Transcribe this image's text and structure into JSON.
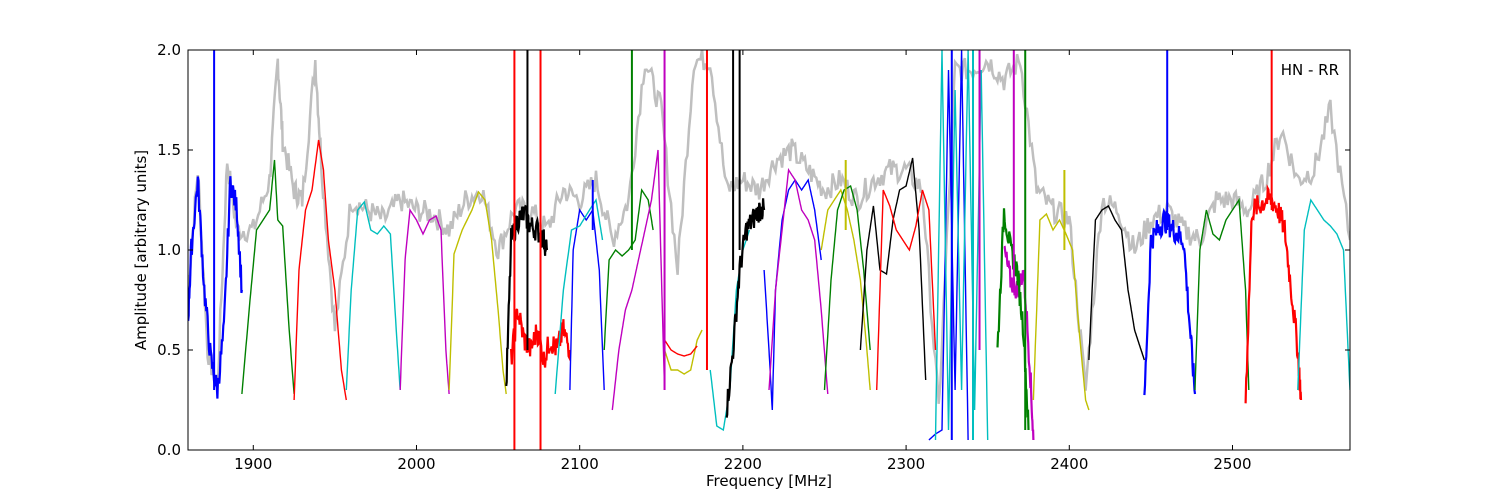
{
  "chart_data": {
    "type": "line",
    "title": "",
    "xlabel": "Frequency [MHz]",
    "ylabel": "Amplitude [arbitrary units]",
    "xlim": [
      1860,
      2572
    ],
    "ylim": [
      0.0,
      2.0
    ],
    "xticks": [
      1900,
      2000,
      2100,
      2200,
      2300,
      2400,
      2500
    ],
    "xtick_labels": [
      "1900",
      "2000",
      "2100",
      "2200",
      "2300",
      "2400",
      "2500"
    ],
    "yticks": [
      0.0,
      0.5,
      1.0,
      1.5,
      2.0
    ],
    "ytick_labels": [
      "0.0",
      "0.5",
      "1.0",
      "1.5",
      "2.0"
    ],
    "annotation": "HN - RR",
    "grid": false,
    "background_series_color": "#bfbfbf",
    "series": [
      {
        "color": "#0000ff",
        "x": [
          1860,
          1862,
          1866,
          1870,
          1874,
          1878,
          1882,
          1886,
          1890,
          1893
        ],
        "y": [
          0.65,
          1.0,
          1.35,
          0.8,
          0.45,
          0.3,
          0.6,
          1.35,
          1.2,
          0.8
        ],
        "noisy": true
      },
      {
        "color": "#008000",
        "x": [
          1893,
          1898,
          1902,
          1906,
          1910,
          1913,
          1915,
          1918,
          1922,
          1925
        ],
        "y": [
          0.28,
          0.75,
          1.1,
          1.15,
          1.2,
          1.45,
          1.15,
          1.12,
          0.6,
          0.28
        ]
      },
      {
        "color": "#ff0000",
        "x": [
          1925,
          1928,
          1932,
          1936,
          1940,
          1943,
          1946,
          1950,
          1954,
          1957
        ],
        "y": [
          0.25,
          0.9,
          1.2,
          1.3,
          1.55,
          1.4,
          1.05,
          0.8,
          0.4,
          0.25
        ]
      },
      {
        "color": "#00bfbf",
        "x": [
          1957,
          1960,
          1964,
          1968,
          1972,
          1976,
          1980,
          1984,
          1988,
          1990
        ],
        "y": [
          0.3,
          0.8,
          1.2,
          1.24,
          1.1,
          1.08,
          1.12,
          1.08,
          0.55,
          0.3
        ]
      },
      {
        "color": "#bf00bf",
        "x": [
          1990,
          1993,
          1996,
          2000,
          2004,
          2008,
          2012,
          2015,
          2018,
          2020
        ],
        "y": [
          0.3,
          0.95,
          1.2,
          1.15,
          1.08,
          1.15,
          1.17,
          1.1,
          0.5,
          0.28
        ]
      },
      {
        "color": "#bfbf00",
        "x": [
          2020,
          2023,
          2028,
          2034,
          2038,
          2042,
          2046,
          2050,
          2053,
          2055
        ],
        "y": [
          0.3,
          0.98,
          1.1,
          1.2,
          1.29,
          1.25,
          1.05,
          0.7,
          0.4,
          0.28
        ]
      },
      {
        "color": "#000000",
        "x": [
          2055,
          2058,
          2062,
          2066,
          2070,
          2074,
          2078,
          2080
        ],
        "y": [
          0.3,
          1.05,
          1.15,
          1.18,
          1.12,
          1.1,
          1.05,
          1.0
        ],
        "noisy": true
      },
      {
        "color": "#ff0000",
        "x": [
          2058,
          2062,
          2066,
          2070,
          2074,
          2078,
          2082,
          2086,
          2090,
          2094
        ],
        "y": [
          0.45,
          0.7,
          0.55,
          0.5,
          0.6,
          0.45,
          0.55,
          0.5,
          0.6,
          0.5
        ],
        "noisy": true
      },
      {
        "color": "#0000ff",
        "x": [
          2094,
          2096,
          2100,
          2104,
          2108,
          2112,
          2115
        ],
        "y": [
          0.3,
          1.0,
          1.2,
          1.15,
          1.2,
          0.9,
          0.3
        ]
      },
      {
        "color": "#00bfbf",
        "x": [
          2085,
          2090,
          2095,
          2100,
          2106,
          2110,
          2114
        ],
        "y": [
          0.28,
          0.8,
          1.1,
          1.12,
          1.2,
          1.25,
          1.05
        ]
      },
      {
        "color": "#008000",
        "x": [
          2115,
          2118,
          2122,
          2126,
          2130,
          2134,
          2138,
          2142,
          2145
        ],
        "y": [
          0.5,
          0.95,
          1.0,
          0.97,
          1.0,
          1.05,
          1.3,
          1.25,
          1.1
        ]
      },
      {
        "color": "#bf00bf",
        "x": [
          2120,
          2124,
          2128,
          2132,
          2136,
          2140,
          2144,
          2148,
          2152
        ],
        "y": [
          0.2,
          0.5,
          0.7,
          0.8,
          0.95,
          1.1,
          1.25,
          1.5,
          0.3
        ]
      },
      {
        "color": "#bfbf00",
        "x": [
          2152,
          2156,
          2160,
          2164,
          2168,
          2172,
          2175
        ],
        "y": [
          0.5,
          0.4,
          0.4,
          0.38,
          0.4,
          0.55,
          0.6
        ]
      },
      {
        "color": "#ff0000",
        "x": [
          2152,
          2156,
          2160,
          2164,
          2168,
          2172
        ],
        "y": [
          0.55,
          0.5,
          0.48,
          0.47,
          0.48,
          0.52
        ]
      },
      {
        "color": "#00bfbf",
        "x": [
          2180,
          2184,
          2188,
          2192,
          2196,
          2200,
          2204
        ],
        "y": [
          0.4,
          0.12,
          0.1,
          0.3,
          0.8,
          1.0,
          1.1
        ]
      },
      {
        "color": "#000000",
        "x": [
          2190,
          2194,
          2198,
          2202,
          2206,
          2210,
          2213
        ],
        "y": [
          0.2,
          0.5,
          0.9,
          1.1,
          1.15,
          1.2,
          1.2
        ],
        "noisy": true
      },
      {
        "color": "#0000ff",
        "x": [
          2213,
          2216,
          2218,
          2220,
          2224,
          2228,
          2232,
          2236,
          2240,
          2244,
          2248
        ],
        "y": [
          0.9,
          0.5,
          0.2,
          0.8,
          1.15,
          1.3,
          1.35,
          1.3,
          1.35,
          1.2,
          0.95
        ]
      },
      {
        "color": "#bf00bf",
        "x": [
          2216,
          2220,
          2224,
          2228,
          2232,
          2236,
          2240,
          2244,
          2248,
          2252
        ],
        "y": [
          0.3,
          0.8,
          1.1,
          1.4,
          1.35,
          1.2,
          1.15,
          1.05,
          0.7,
          0.28
        ]
      },
      {
        "color": "#bfbf00",
        "x": [
          2248,
          2252,
          2256,
          2260,
          2264,
          2268,
          2272,
          2276,
          2278
        ],
        "y": [
          1.0,
          1.2,
          1.25,
          1.3,
          1.2,
          1.05,
          0.85,
          0.5,
          0.3
        ]
      },
      {
        "color": "#008000",
        "x": [
          2250,
          2254,
          2258,
          2262,
          2266,
          2270,
          2274,
          2278
        ],
        "y": [
          0.3,
          0.85,
          1.2,
          1.3,
          1.32,
          1.2,
          0.9,
          0.5
        ]
      },
      {
        "color": "#000000",
        "x": [
          2272,
          2276,
          2280,
          2284,
          2288,
          2292,
          2296,
          2300,
          2304,
          2308,
          2312
        ],
        "y": [
          0.5,
          1.0,
          1.22,
          0.9,
          0.88,
          1.15,
          1.3,
          1.32,
          1.46,
          1.1,
          0.35
        ]
      },
      {
        "color": "#ff0000",
        "x": [
          2282,
          2286,
          2290,
          2294,
          2298,
          2302,
          2306,
          2310,
          2314,
          2318
        ],
        "y": [
          0.3,
          1.3,
          1.22,
          1.1,
          1.05,
          1.0,
          1.12,
          1.3,
          1.2,
          0.5
        ]
      },
      {
        "color": "#0000ff",
        "x": [
          2314,
          2318,
          2322,
          2326,
          2330,
          2334,
          2338
        ],
        "y": [
          0.05,
          0.08,
          0.1,
          1.9,
          0.3,
          2.0,
          0.05
        ]
      },
      {
        "color": "#00bfbf",
        "x": [
          2318,
          2322,
          2326,
          2330,
          2334,
          2338,
          2342,
          2346,
          2350
        ],
        "y": [
          0.05,
          2.0,
          0.1,
          1.8,
          0.3,
          2.0,
          0.2,
          1.9,
          0.05
        ]
      },
      {
        "color": "#bf00bf",
        "x": [
          2360,
          2364,
          2368,
          2372,
          2376,
          2378
        ],
        "y": [
          1.0,
          0.85,
          0.8,
          0.9,
          0.4,
          0.05
        ],
        "noisy": true
      },
      {
        "color": "#008000",
        "x": [
          2356,
          2360,
          2364,
          2368,
          2372,
          2375
        ],
        "y": [
          0.5,
          1.2,
          1.0,
          0.9,
          0.6,
          0.1
        ],
        "noisy": true
      },
      {
        "color": "#bfbf00",
        "x": [
          2378,
          2382,
          2386,
          2390,
          2394,
          2398,
          2402,
          2406,
          2410,
          2412
        ],
        "y": [
          0.25,
          1.15,
          1.18,
          1.1,
          1.15,
          1.08,
          1.0,
          0.6,
          0.25,
          0.2
        ]
      },
      {
        "color": "#000000",
        "x": [
          2412,
          2416,
          2420,
          2424,
          2428,
          2432,
          2436,
          2440,
          2444,
          2446
        ],
        "y": [
          0.45,
          1.15,
          1.2,
          1.22,
          1.15,
          1.1,
          0.8,
          0.6,
          0.5,
          0.45
        ]
      },
      {
        "color": "#0000ff",
        "x": [
          2446,
          2450,
          2454,
          2458,
          2462,
          2466,
          2470,
          2474,
          2477
        ],
        "y": [
          0.25,
          1.05,
          1.1,
          1.15,
          1.12,
          1.08,
          1.05,
          0.6,
          0.28
        ],
        "noisy": true
      },
      {
        "color": "#008000",
        "x": [
          2477,
          2480,
          2484,
          2488,
          2492,
          2496,
          2500,
          2504,
          2508,
          2510
        ],
        "y": [
          0.3,
          1.0,
          1.2,
          1.08,
          1.05,
          1.15,
          1.2,
          1.25,
          0.8,
          0.3
        ]
      },
      {
        "color": "#ff0000",
        "x": [
          2508,
          2512,
          2516,
          2520,
          2524,
          2528,
          2532,
          2536,
          2540,
          2542
        ],
        "y": [
          0.25,
          1.2,
          1.22,
          1.25,
          1.25,
          1.2,
          1.1,
          0.8,
          0.5,
          0.25
        ],
        "noisy": true
      },
      {
        "color": "#00bfbf",
        "x": [
          2540,
          2544,
          2548,
          2552,
          2556,
          2560,
          2564,
          2568,
          2572
        ],
        "y": [
          0.3,
          1.1,
          1.25,
          1.2,
          1.15,
          1.12,
          1.08,
          1.0,
          0.3
        ]
      }
    ],
    "spikes": [
      {
        "color": "#0000ff",
        "x": 1876,
        "y0": 0.3,
        "y1": 2.0
      },
      {
        "color": "#ff0000",
        "x": 2060,
        "y0": 0.0,
        "y1": 2.0
      },
      {
        "color": "#000000",
        "x": 2068,
        "y0": 0.5,
        "y1": 2.0
      },
      {
        "color": "#ff0000",
        "x": 2076,
        "y0": 0.0,
        "y1": 2.0
      },
      {
        "color": "#000000",
        "x": 2198,
        "y0": 1.0,
        "y1": 2.0
      },
      {
        "color": "#000000",
        "x": 2194,
        "y0": 0.9,
        "y1": 2.0
      },
      {
        "color": "#0000ff",
        "x": 2108,
        "y0": 1.1,
        "y1": 1.35
      },
      {
        "color": "#008000",
        "x": 2132,
        "y0": 1.0,
        "y1": 2.0
      },
      {
        "color": "#bf00bf",
        "x": 2152,
        "y0": 0.3,
        "y1": 2.0
      },
      {
        "color": "#ff0000",
        "x": 2178,
        "y0": 0.4,
        "y1": 2.0
      },
      {
        "color": "#008000",
        "x": 2373,
        "y0": 0.1,
        "y1": 2.0
      },
      {
        "color": "#bf00bf",
        "x": 2366,
        "y0": 0.8,
        "y1": 2.0
      },
      {
        "color": "#0000ff",
        "x": 2460,
        "y0": 1.1,
        "y1": 2.0
      },
      {
        "color": "#ff0000",
        "x": 2524,
        "y0": 1.2,
        "y1": 2.0
      },
      {
        "color": "#bfbf00",
        "x": 2397,
        "y0": 1.0,
        "y1": 1.4
      },
      {
        "color": "#bfbf00",
        "x": 2263,
        "y0": 1.1,
        "y1": 1.45
      },
      {
        "color": "#0000ff",
        "x": 2328,
        "y0": 0.05,
        "y1": 2.0
      },
      {
        "color": "#00bfbf",
        "x": 2341,
        "y0": 0.05,
        "y1": 2.0
      },
      {
        "color": "#bf00bf",
        "x": 2345,
        "y0": 0.5,
        "y1": 2.0
      }
    ],
    "gray_envelope": {
      "x": [
        1860,
        1866,
        1872,
        1878,
        1884,
        1890,
        1900,
        1910,
        1915,
        1918,
        1925,
        1930,
        1938,
        1942,
        1950,
        1960,
        1970,
        1980,
        1990,
        2000,
        2010,
        2020,
        2030,
        2040,
        2050,
        2060,
        2070,
        2080,
        2090,
        2100,
        2110,
        2120,
        2130,
        2140,
        2150,
        2160,
        2170,
        2180,
        2190,
        2200,
        2210,
        2220,
        2230,
        2240,
        2250,
        2260,
        2270,
        2280,
        2290,
        2300,
        2310,
        2320,
        2330,
        2340,
        2350,
        2360,
        2370,
        2380,
        2390,
        2400,
        2410,
        2420,
        2430,
        2440,
        2450,
        2460,
        2470,
        2480,
        2490,
        2500,
        2510,
        2520,
        2530,
        2540,
        2550,
        2560,
        2572
      ],
      "y": [
        0.8,
        1.4,
        0.5,
        0.3,
        1.45,
        1.1,
        1.1,
        1.35,
        1.95,
        1.55,
        1.3,
        1.25,
        1.95,
        1.4,
        0.6,
        1.25,
        1.2,
        1.15,
        1.25,
        1.2,
        1.18,
        1.1,
        1.25,
        1.3,
        1.0,
        1.2,
        1.2,
        1.1,
        1.3,
        1.25,
        1.35,
        1.05,
        1.25,
        1.95,
        1.7,
        0.9,
        1.95,
        1.95,
        1.3,
        1.35,
        1.3,
        1.45,
        1.5,
        1.4,
        1.3,
        1.35,
        1.25,
        1.35,
        1.4,
        1.4,
        1.3,
        0.2,
        1.9,
        1.9,
        1.95,
        1.85,
        1.95,
        1.3,
        1.2,
        1.15,
        0.3,
        1.25,
        1.2,
        1.0,
        1.15,
        1.2,
        1.1,
        1.05,
        1.25,
        1.25,
        1.2,
        1.35,
        1.6,
        1.35,
        1.4,
        1.7,
        1.05
      ]
    }
  }
}
